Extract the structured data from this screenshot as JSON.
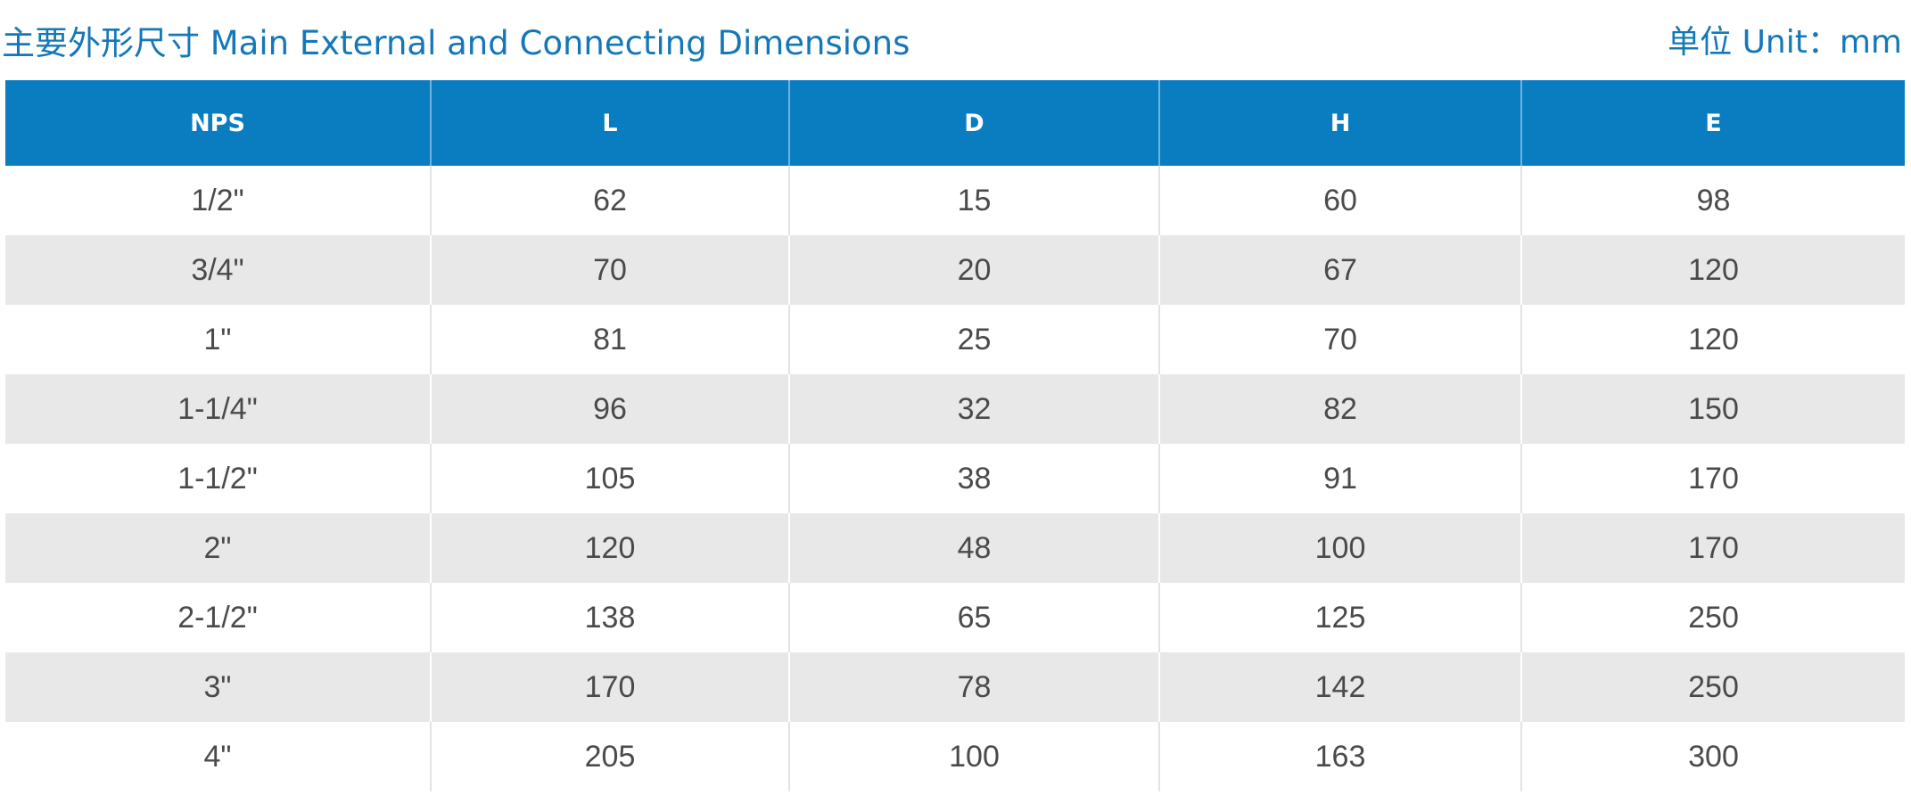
{
  "header": {
    "title": "主要外形尺寸 Main External and Connecting Dimensions",
    "unit": "单位 Unit：mm"
  },
  "table": {
    "columns": [
      "NPS",
      "L",
      "D",
      "H",
      "E"
    ],
    "rows": [
      [
        "1/2\"",
        "62",
        "15",
        "60",
        "98"
      ],
      [
        "3/4\"",
        "70",
        "20",
        "67",
        "120"
      ],
      [
        "1\"",
        "81",
        "25",
        "70",
        "120"
      ],
      [
        "1-1/4\"",
        "96",
        "32",
        "82",
        "150"
      ],
      [
        "1-1/2\"",
        "105",
        "38",
        "91",
        "170"
      ],
      [
        "2\"",
        "120",
        "48",
        "100",
        "170"
      ],
      [
        "2-1/2\"",
        "138",
        "65",
        "125",
        "250"
      ],
      [
        "3\"",
        "170",
        "78",
        "142",
        "250"
      ],
      [
        "4\"",
        "205",
        "100",
        "163",
        "300"
      ]
    ]
  },
  "colors": {
    "header_background": "#0a7cc0",
    "title_text": "#1478b8",
    "stripe": "#e8e8e8"
  }
}
